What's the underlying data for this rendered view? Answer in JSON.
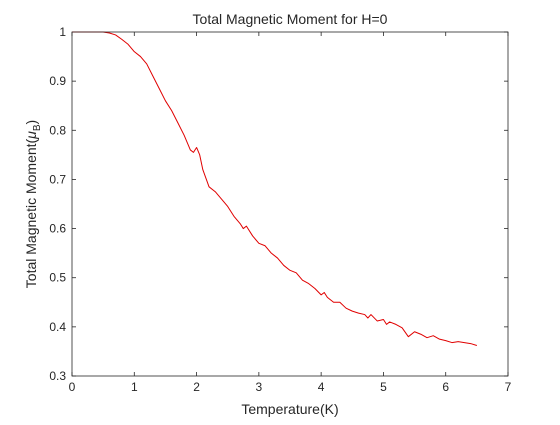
{
  "chart_data": {
    "type": "line",
    "title": "Total Magnetic Moment for H=0",
    "xlabel": "Temperature(K)",
    "ylabel": "Total Magnetic Moment(",
    "ylabel_symbol": "μ",
    "ylabel_subscript": "B",
    "ylabel_close": ")",
    "xlim": [
      0,
      7
    ],
    "ylim": [
      0.3,
      1
    ],
    "xticks": [
      0,
      1,
      2,
      3,
      4,
      5,
      6,
      7
    ],
    "yticks": [
      0.3,
      0.4,
      0.5,
      0.6,
      0.7,
      0.8,
      0.9,
      1
    ],
    "grid": false,
    "legend": "none",
    "series": [
      {
        "color": "#e00000",
        "x": [
          0,
          0.1,
          0.2,
          0.3,
          0.4,
          0.5,
          0.6,
          0.7,
          0.8,
          0.9,
          1.0,
          1.1,
          1.2,
          1.3,
          1.4,
          1.5,
          1.6,
          1.7,
          1.8,
          1.9,
          1.95,
          2.0,
          2.05,
          2.1,
          2.2,
          2.3,
          2.4,
          2.5,
          2.6,
          2.7,
          2.75,
          2.8,
          2.9,
          3.0,
          3.1,
          3.2,
          3.3,
          3.4,
          3.5,
          3.6,
          3.7,
          3.8,
          3.9,
          4.0,
          4.05,
          4.1,
          4.2,
          4.3,
          4.4,
          4.5,
          4.6,
          4.7,
          4.75,
          4.8,
          4.9,
          5.0,
          5.05,
          5.1,
          5.2,
          5.3,
          5.4,
          5.5,
          5.6,
          5.7,
          5.8,
          5.9,
          6.0,
          6.1,
          6.2,
          6.3,
          6.4,
          6.5
        ],
        "y": [
          1.0,
          1.0,
          1.0,
          1.0,
          1.0,
          1.0,
          0.998,
          0.994,
          0.985,
          0.975,
          0.96,
          0.95,
          0.935,
          0.91,
          0.885,
          0.86,
          0.84,
          0.815,
          0.79,
          0.76,
          0.755,
          0.765,
          0.75,
          0.72,
          0.685,
          0.675,
          0.66,
          0.645,
          0.625,
          0.61,
          0.6,
          0.605,
          0.585,
          0.57,
          0.565,
          0.55,
          0.54,
          0.525,
          0.515,
          0.51,
          0.495,
          0.488,
          0.478,
          0.465,
          0.47,
          0.46,
          0.45,
          0.45,
          0.438,
          0.432,
          0.428,
          0.425,
          0.418,
          0.425,
          0.412,
          0.415,
          0.405,
          0.41,
          0.405,
          0.398,
          0.38,
          0.39,
          0.385,
          0.378,
          0.382,
          0.375,
          0.372,
          0.368,
          0.37,
          0.368,
          0.366,
          0.362
        ]
      }
    ]
  }
}
